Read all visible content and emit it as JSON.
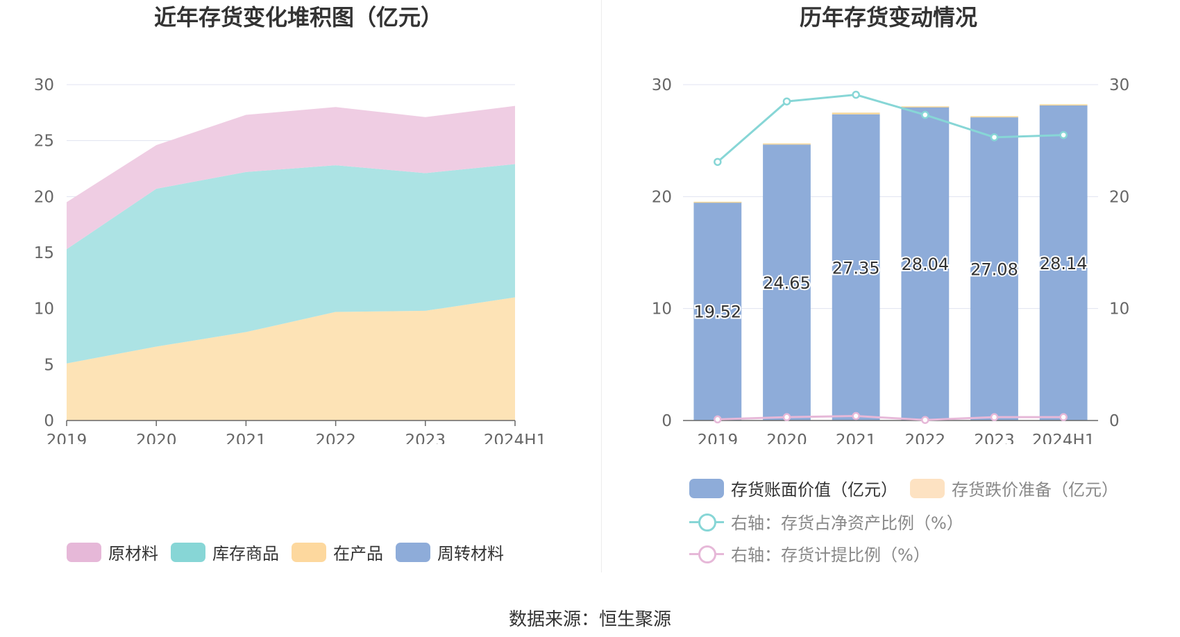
{
  "left_chart": {
    "title": "近年存货变化堆积图（亿元）",
    "legend": [
      {
        "name": "原材料",
        "color": "#e6b8d8"
      },
      {
        "name": "库存商品",
        "color": "#87d6d6"
      },
      {
        "name": "在产品",
        "color": "#fdd89e"
      },
      {
        "name": "周转材料",
        "color": "#8eacd9"
      }
    ]
  },
  "right_chart": {
    "title": "历年存货变动情况",
    "legend": [
      {
        "name": "存货账面价值（亿元）",
        "color": "#8eacd9"
      },
      {
        "name": "存货跌价准备（亿元）",
        "color": "#fde2c2"
      },
      {
        "name": "右轴：存货占净资产比例（%）",
        "color": "#87d6d6"
      },
      {
        "name": "右轴：存货计提比例（%）",
        "color": "#e6b8d8"
      }
    ]
  },
  "chart_data": [
    {
      "type": "area",
      "stacked": true,
      "title": "近年存货变化堆积图（亿元）",
      "categories": [
        "2019",
        "2020",
        "2021",
        "2022",
        "2023",
        "2024H1"
      ],
      "ylim": [
        0,
        30
      ],
      "yticks": [
        0,
        5,
        10,
        15,
        20,
        25,
        30
      ],
      "grid": true,
      "legend_position": "bottom",
      "series": [
        {
          "name": "在产品",
          "color": "#fde3b6",
          "values": [
            5.1,
            6.6,
            7.9,
            9.7,
            9.8,
            11.0
          ]
        },
        {
          "name": "库存商品",
          "color": "#ace3e4",
          "values": [
            10.2,
            14.1,
            14.3,
            13.1,
            12.3,
            11.9
          ]
        },
        {
          "name": "原材料",
          "color": "#efcde3",
          "values": [
            4.2,
            3.9,
            5.1,
            5.2,
            5.0,
            5.2
          ]
        },
        {
          "name": "周转材料",
          "color": "#8eacd9",
          "values": [
            0.0,
            0.0,
            0.0,
            0.0,
            0.0,
            0.0
          ]
        }
      ]
    },
    {
      "type": "bar",
      "title": "历年存货变动情况",
      "categories": [
        "2019",
        "2020",
        "2021",
        "2022",
        "2023",
        "2024H1"
      ],
      "ylim": [
        0,
        30
      ],
      "yticks": [
        0,
        10,
        20,
        30
      ],
      "y2lim": [
        0,
        30
      ],
      "y2ticks": [
        0,
        10,
        20,
        30
      ],
      "grid": true,
      "legend_position": "bottom",
      "series": [
        {
          "name": "存货账面价值（亿元）",
          "type": "bar",
          "axis": "left",
          "color": "#8eacd9",
          "values": [
            19.52,
            24.65,
            27.35,
            28.04,
            27.08,
            28.14
          ],
          "labels": [
            "19.52",
            "24.65",
            "27.35",
            "28.04",
            "27.08",
            "28.14"
          ]
        },
        {
          "name": "存货跌价准备（亿元）",
          "type": "bar",
          "axis": "left",
          "color": "#fde2c2",
          "values": [
            0.02,
            0.1,
            0.15,
            0.02,
            0.1,
            0.1
          ]
        },
        {
          "name": "右轴：存货占净资产比例（%）",
          "type": "line",
          "axis": "right",
          "color": "#87d6d6",
          "values": [
            23.1,
            28.5,
            29.1,
            27.3,
            25.3,
            25.5
          ]
        },
        {
          "name": "右轴：存货计提比例（%）",
          "type": "line",
          "axis": "right",
          "color": "#e6b8d8",
          "values": [
            0.1,
            0.3,
            0.4,
            0.05,
            0.3,
            0.3
          ]
        }
      ]
    }
  ],
  "source": "数据来源：恒生聚源"
}
